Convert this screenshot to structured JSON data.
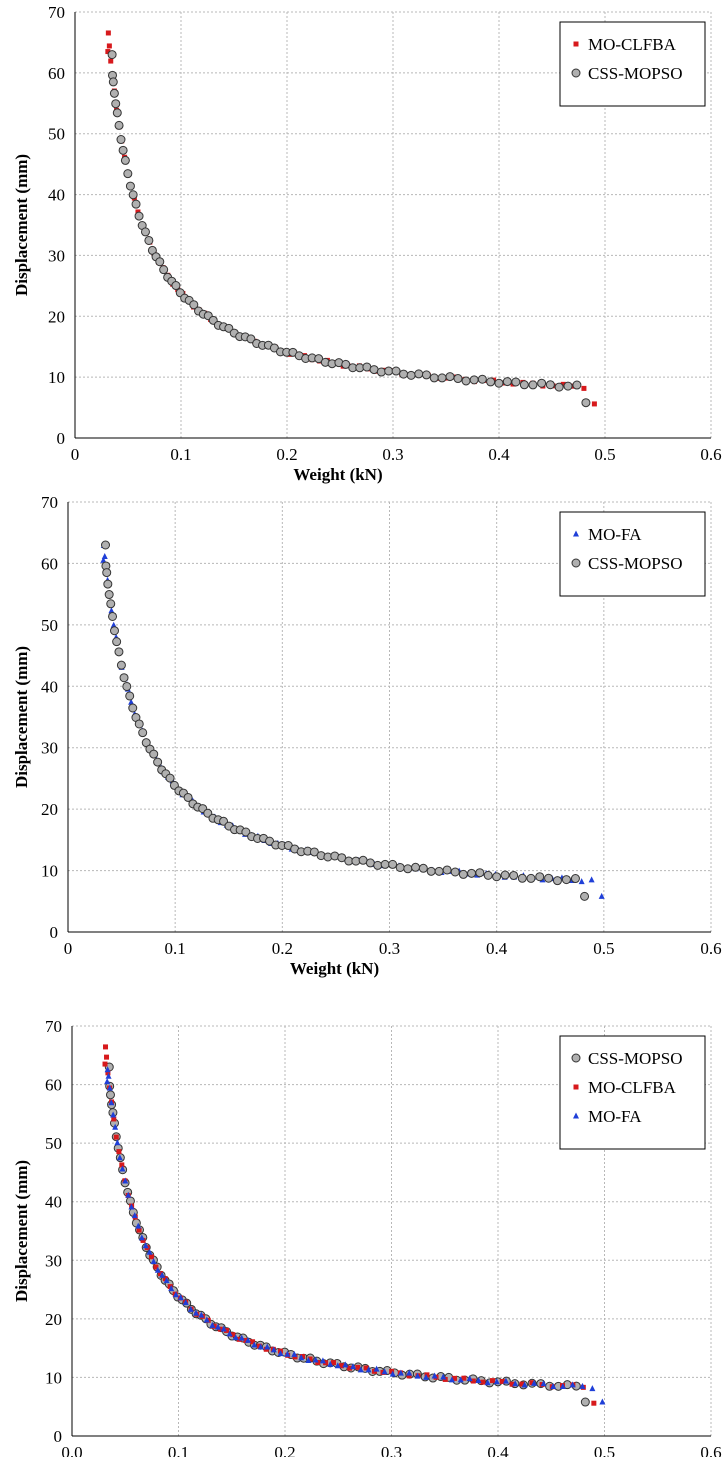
{
  "chart_data": [
    {
      "type": "scatter",
      "xlabel": "Weight (kN)",
      "ylabel": "Displacement (mm)",
      "xlim": [
        0,
        0.6
      ],
      "ylim": [
        0,
        70
      ],
      "x_ticks": [
        "0",
        "0.1",
        "0.2",
        "0.3",
        "0.4",
        "0.5",
        "0.6"
      ],
      "y_ticks": [
        "0",
        "10",
        "20",
        "30",
        "40",
        "50",
        "60",
        "70"
      ],
      "grid": true,
      "legend_position": "top-right",
      "series": [
        {
          "name": "MO-CLFBA",
          "marker": "square",
          "color": "#d7191c",
          "x_range": [
            0.031,
            0.49
          ],
          "y_range": [
            63.5,
            5.6
          ],
          "n": 75
        },
        {
          "name": "CSS-MOPSO",
          "marker": "circle",
          "color": "#b0b0b0",
          "x_range": [
            0.035,
            0.482
          ],
          "y_range": [
            63.0,
            5.8
          ],
          "n": 85
        }
      ]
    },
    {
      "type": "scatter",
      "xlabel": "Weight (kN)",
      "ylabel": "Displacement (mm)",
      "xlim": [
        0,
        0.6
      ],
      "ylim": [
        0,
        70
      ],
      "x_ticks": [
        "0",
        "0.1",
        "0.2",
        "0.3",
        "0.4",
        "0.5",
        "0.6"
      ],
      "y_ticks": [
        "0",
        "10",
        "20",
        "30",
        "40",
        "50",
        "60",
        "70"
      ],
      "grid": true,
      "legend_position": "top-right",
      "series": [
        {
          "name": "MO-FA",
          "marker": "triangle",
          "color": "#1f3fd8",
          "x_range": [
            0.033,
            0.498
          ],
          "y_range": [
            60.5,
            5.8
          ],
          "n": 80
        },
        {
          "name": "CSS-MOPSO",
          "marker": "circle",
          "color": "#b0b0b0",
          "x_range": [
            0.035,
            0.482
          ],
          "y_range": [
            63.0,
            5.8
          ],
          "n": 85
        }
      ]
    },
    {
      "type": "scatter",
      "xlabel": "Weight (kN)",
      "ylabel": "Displacement (mm)",
      "xlim": [
        0,
        0.6
      ],
      "ylim": [
        0,
        70
      ],
      "x_ticks": [
        "0.0",
        "0.1",
        "0.2",
        "0.3",
        "0.4",
        "0.5",
        "0.6"
      ],
      "y_ticks": [
        "0",
        "10",
        "20",
        "30",
        "40",
        "50",
        "60",
        "70"
      ],
      "grid": true,
      "legend_position": "top-right",
      "series": [
        {
          "name": "CSS-MOPSO",
          "marker": "circle",
          "color": "#b0b0b0",
          "x_range": [
            0.035,
            0.482
          ],
          "y_range": [
            63.0,
            5.8
          ],
          "n": 85
        },
        {
          "name": "MO-CLFBA",
          "marker": "square",
          "color": "#d7191c",
          "x_range": [
            0.031,
            0.49
          ],
          "y_range": [
            63.5,
            5.6
          ],
          "n": 75
        },
        {
          "name": "MO-FA",
          "marker": "triangle",
          "color": "#1f3fd8",
          "x_range": [
            0.033,
            0.498
          ],
          "y_range": [
            60.5,
            5.8
          ],
          "n": 80
        }
      ]
    }
  ]
}
